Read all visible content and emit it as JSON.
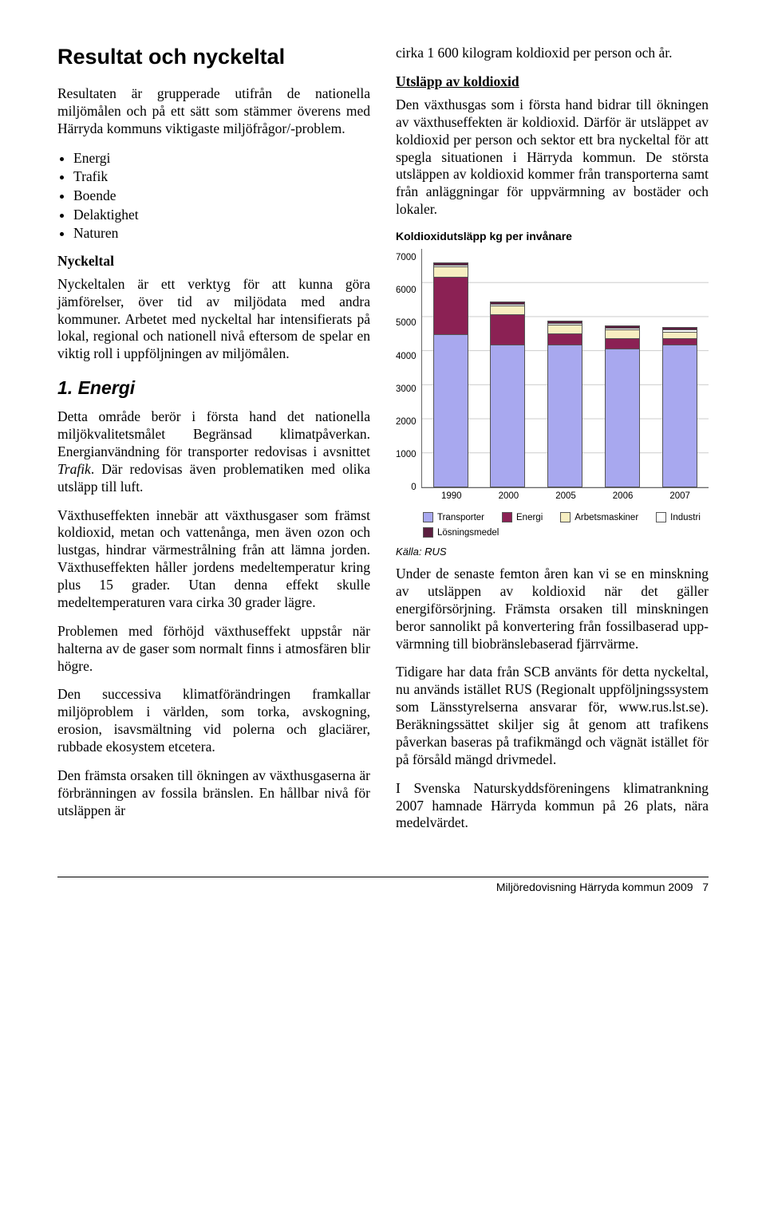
{
  "left": {
    "title": "Resultat och nyckeltal",
    "intro": "Resultaten är grupperade utifrån de nationella miljömålen och på ett sätt som stämmer överens med Härryda kommuns viktigaste miljöfrågor/-problem.",
    "bullets": [
      "Energi",
      "Trafik",
      "Boende",
      "Delaktighet",
      "Naturen"
    ],
    "sub1": "Nyckeltal",
    "p_nyckeltal": "Nyckeltalen är ett verktyg för att kunna göra jämförelser, över tid av miljödata med andra kommuner. Arbetet med nyckeltal har intensifierats på lokal, regional och nationell nivå eftersom de spelar en viktig roll i uppföljningen av miljömålen.",
    "h_energi": "1. Energi",
    "p_energi1_a": "Detta område berör i första hand det nationella miljökvalitetsmålet Begränsad klimatpåverkan. Energianvändning för transporter redovisas i avsnittet ",
    "p_energi1_ital": "Trafik",
    "p_energi1_b": ". Där redovisas även problematiken med olika utsläpp till luft.",
    "p_energi2": "Växthuseffekten innebär att växthusgaser som främst koldioxid, metan och vatten­ånga, men även ozon och lustgas, hindrar värmestrålning från att lämna jorden. Växthuseffekten håller jordens medel­temperatur kring plus 15 grader. Utan denna effekt skulle medeltemperaturen vara cirka 30 grader lägre.",
    "p_energi3": "Problemen med förhöjd växthuseffekt uppstår när halterna av de gaser som normalt finns i atmosfären blir högre.",
    "p_energi4": "Den successiva klimatförändringen fram­kallar miljöproblem i världen, som torka, avskogning, erosion, isavsmältning vid polerna och glaciärer, rubbade ekosystem etcetera.",
    "p_energi5": "Den främsta orsaken till ökningen av växthusgaserna är förbränningen av fossila bränslen. En hållbar nivå för utsläppen är"
  },
  "right": {
    "p_top": "cirka 1 600 kilogram koldioxid per person och år.",
    "sub_utsläpp": "Utsläpp av koldioxid",
    "p_utsläpp": "Den växthusgas som i första hand bidrar till ökningen av växthuseffekten är koldioxid. Därför är utsläppet av koldioxid per person och sektor ett bra nyckeltal för att spegla situationen i Härryda kommun. De största utsläppen av koldioxid kommer från transporterna samt från anläggningar för uppvärmning av bostäder och lokaler.",
    "chart_title": "Koldioxidutsläpp kg per invånare",
    "source": "Källa: RUS",
    "p_after1": "Under de senaste femton åren kan vi se en minskning av utsläppen av koldioxid när det gäller energiförsörjning. Främsta orsaken till minskningen beror sannolikt på konvertering från fossilbaserad upp­värmning till biobränslebaserad fjärrvärme.",
    "p_after2": "Tidigare har data från SCB använts för detta nyckeltal, nu används istället RUS (Regionalt uppföljningssystem som Läns­styrelserna ansvarar för, www.rus.lst.se). Beräkningssättet skiljer sig åt genom att trafikens påverkan baseras på trafikmängd och vägnät istället för på försåld mängd drivmedel.",
    "p_after3": "I Svenska Naturskyddsföreningens klimat­rankning 2007 hamnade Härryda kommun på 26 plats, nära medelvärdet."
  },
  "chart": {
    "ymax": 7000,
    "ytick_step": 1000,
    "yticks": [
      "7000",
      "6000",
      "5000",
      "4000",
      "3000",
      "2000",
      "1000",
      "0"
    ],
    "categories": [
      "1990",
      "2000",
      "2005",
      "2006",
      "2007"
    ],
    "series": [
      {
        "key": "transporter",
        "label": "Transporter",
        "color": "#a8a8ef"
      },
      {
        "key": "energi",
        "label": "Energi",
        "color": "#8b2154"
      },
      {
        "key": "arbetsmaskiner",
        "label": "Arbetsmaskiner",
        "color": "#f7eec1"
      },
      {
        "key": "industri",
        "label": "Industri",
        "color": "#ffffff"
      },
      {
        "key": "losningsmedel",
        "label": "Lösningsmedel",
        "color": "#5b1e3f"
      }
    ],
    "stack_order": [
      "transporter",
      "energi",
      "arbetsmaskiner",
      "industri",
      "losningsmedel"
    ],
    "data": {
      "1990": {
        "transporter": 4500,
        "energi": 1700,
        "arbetsmaskiner": 300,
        "industri": 50,
        "losningsmedel": 50
      },
      "2000": {
        "transporter": 4200,
        "energi": 900,
        "arbetsmaskiner": 250,
        "industri": 50,
        "losningsmedel": 50
      },
      "2005": {
        "transporter": 4200,
        "energi": 350,
        "arbetsmaskiner": 250,
        "industri": 50,
        "losningsmedel": 50
      },
      "2006": {
        "transporter": 4100,
        "energi": 300,
        "arbetsmaskiner": 250,
        "industri": 50,
        "losningsmedel": 50
      },
      "2007": {
        "transporter": 4200,
        "energi": 200,
        "arbetsmaskiner": 200,
        "industri": 50,
        "losningsmedel": 50
      }
    },
    "grid_color": "#cccccc",
    "font_size": 11
  },
  "footer": {
    "text": "Miljöredovisning Härryda kommun 2009",
    "page": "7"
  }
}
